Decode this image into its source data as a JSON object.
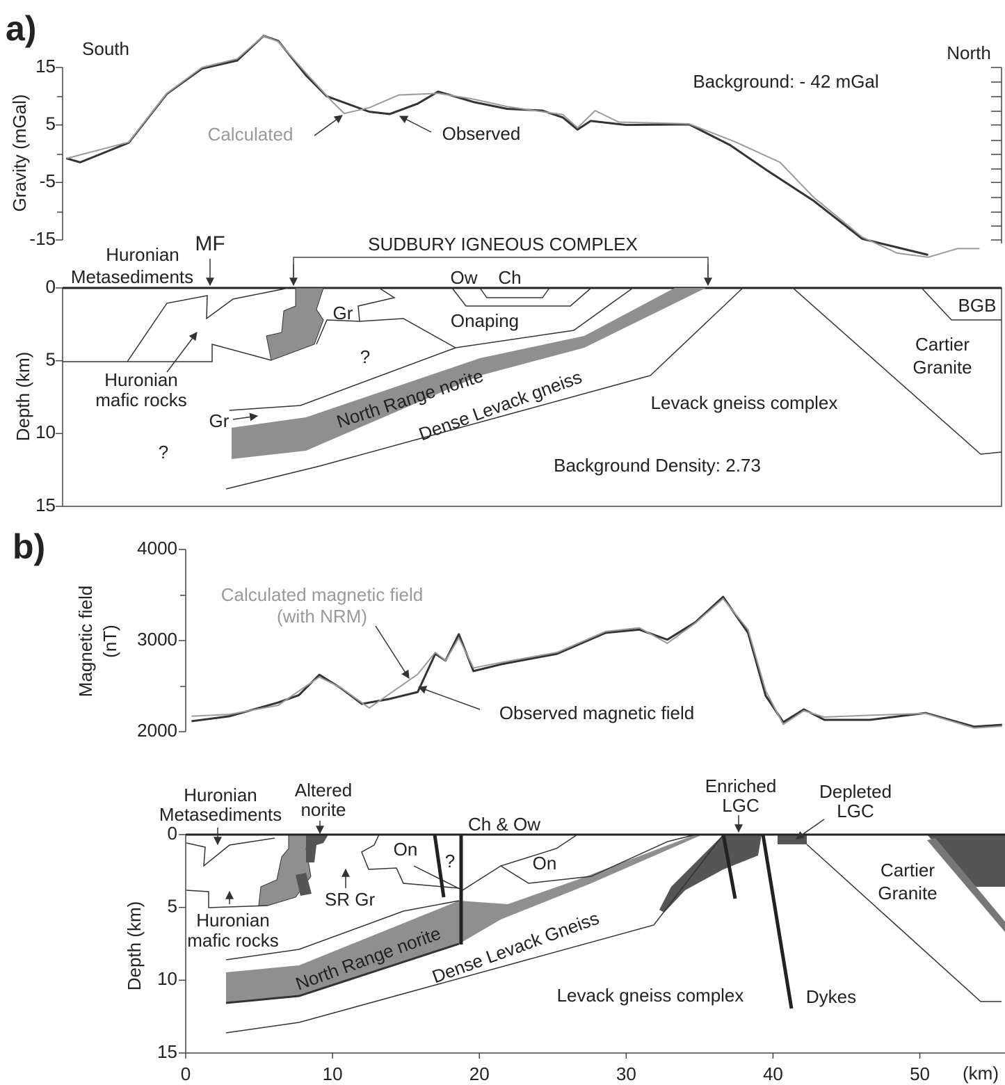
{
  "chart_data": [
    {
      "type": "line",
      "panel": "a)",
      "ylabel": "Gravity (mGal)",
      "annotations": [
        "South",
        "North",
        "Background: - 42 mGal"
      ],
      "xlim": [
        -8.4,
        55.6
      ],
      "ylim": [
        -15,
        15
      ],
      "yticks": [
        15,
        5,
        -5,
        -15
      ],
      "series": [
        {
          "name": "Observed",
          "color": "#333333",
          "x": [
            -8.15,
            -7.2,
            -3.9,
            -1.3,
            1.1,
            3.5,
            5.3,
            6.3,
            8.2,
            9.6,
            12.5,
            13.9,
            15.8,
            17.2,
            19.6,
            21.9,
            24.3,
            25.7,
            26.7,
            27.6,
            30,
            34.3,
            37.1,
            39.5,
            42.8,
            46.1,
            48.5,
            50.6
          ],
          "values": [
            -0.8,
            -1.5,
            1.9,
            10.4,
            14.8,
            16.2,
            20.5,
            19.6,
            13.6,
            10,
            7.3,
            6.9,
            8.7,
            10.8,
            9,
            7.8,
            7.5,
            6.3,
            4.2,
            5.7,
            5,
            5.1,
            1.5,
            -2.7,
            -8.2,
            -14.8,
            -16.3,
            -17.6
          ]
        },
        {
          "name": "Calculated",
          "color": "#9a9a9a",
          "x": [
            -8.1,
            -3.9,
            -1.3,
            1.1,
            3.5,
            5.3,
            6.3,
            8.2,
            10,
            10.8,
            12.5,
            14.5,
            17.2,
            19.6,
            21.9,
            24.3,
            25.7,
            26.7,
            27.9,
            29.5,
            34.3,
            37.5,
            40.5,
            42.8,
            46.1,
            48.5,
            50.6,
            52.6,
            54.1
          ],
          "values": [
            -0.8,
            2,
            10.5,
            15,
            16.5,
            20.5,
            19.5,
            14,
            9,
            7,
            8,
            10.2,
            10.5,
            9.5,
            8.2,
            7.3,
            6.8,
            4.5,
            7.5,
            5.5,
            5.2,
            2,
            -1.5,
            -7.6,
            -14.5,
            -17.3,
            -18,
            -16.5,
            -16.5
          ]
        }
      ]
    },
    {
      "type": "section",
      "ylabel": "Depth (km)",
      "ylim": [
        15,
        0
      ],
      "yticks": [
        0,
        5,
        10,
        15
      ],
      "labels": [
        [
          "Huronian",
          "Metasediments"
        ],
        [
          "MF"
        ],
        [
          "SUDBURY IGNEOUS COMPLEX"
        ],
        [
          "Ow"
        ],
        [
          "Ch"
        ],
        [
          "Gr"
        ],
        [
          "Onaping"
        ],
        [
          "BGB"
        ],
        [
          "Cartier",
          "Granite"
        ],
        [
          "?"
        ],
        [
          "Huronian",
          "mafic rocks"
        ],
        [
          "North Range norite"
        ],
        [
          "Dense Levack gneiss"
        ],
        [
          "Levack gneiss complex"
        ],
        [
          "Gr"
        ],
        [
          "?"
        ],
        [
          "Background Density: 2.73"
        ]
      ]
    },
    {
      "type": "line",
      "panel": "b)",
      "ylabel": [
        "Magnetic field",
        "(nT)"
      ],
      "annotations": [
        "(with NRM)"
      ],
      "xlim": [
        0,
        55.8
      ],
      "ylim": [
        2000,
        4000
      ],
      "yticks": [
        2000,
        3000,
        4000
      ],
      "series": [
        {
          "name": "Observed magnetic field",
          "color": "#333333",
          "x": [
            0.4,
            3,
            6.3,
            7.7,
            9.1,
            10.6,
            12,
            13.9,
            15.8,
            17,
            17.7,
            18.6,
            19.6,
            21.5,
            25.3,
            28.6,
            30.9,
            32.8,
            34.7,
            36.6,
            38.3,
            39.5,
            40.7,
            42.1,
            43.5,
            46.6,
            50.4,
            53.7,
            55.6
          ],
          "values": [
            2115,
            2170,
            2320,
            2400,
            2625,
            2475,
            2305,
            2360,
            2435,
            2855,
            2780,
            3070,
            2665,
            2740,
            2855,
            3085,
            3120,
            3010,
            3200,
            3480,
            3085,
            2395,
            2105,
            2245,
            2130,
            2130,
            2205,
            2055,
            2075
          ]
        },
        {
          "name": "Calculated magnetic field",
          "color": "#9a9a9a",
          "x": [
            0.4,
            3,
            6.3,
            9.1,
            10.6,
            12.5,
            15.8,
            17,
            17.7,
            18.6,
            19.6,
            21.5,
            25.3,
            28.6,
            30.9,
            32.8,
            34.7,
            36.6,
            38.3,
            39.5,
            40.7,
            42.1,
            43.5,
            46.6,
            50.4,
            53.7,
            55.6
          ],
          "values": [
            2170,
            2190,
            2290,
            2600,
            2480,
            2260,
            2630,
            2870,
            2780,
            3030,
            2700,
            2760,
            2870,
            3100,
            3140,
            2970,
            3190,
            3460,
            3120,
            2450,
            2080,
            2230,
            2160,
            2180,
            2200,
            2040,
            2060
          ]
        }
      ]
    },
    {
      "type": "section",
      "ylabel": "Depth (km)",
      "xlabel": "(km)",
      "xlim": [
        0,
        55.8
      ],
      "xticks": [
        0,
        10,
        20,
        30,
        40,
        50
      ],
      "ylim": [
        15,
        0
      ],
      "yticks": [
        0,
        5,
        10,
        15
      ],
      "labels": [
        [
          "Huronian",
          "Metasediments"
        ],
        [
          "Altered",
          "norite"
        ],
        [
          "Ch & Ow"
        ],
        [
          "Enriched",
          "LGC"
        ],
        [
          "Depleted",
          "LGC"
        ],
        [
          "On"
        ],
        [
          "?"
        ],
        [
          "On"
        ],
        [
          "Cartier",
          "Granite"
        ],
        [
          "SR Gr"
        ],
        [
          "Huronian",
          "mafic rocks"
        ],
        [
          "North Range norite"
        ],
        [
          "Dense Levack Gneiss"
        ],
        [
          "Levack gneiss complex"
        ],
        [
          "Dykes"
        ]
      ]
    }
  ]
}
